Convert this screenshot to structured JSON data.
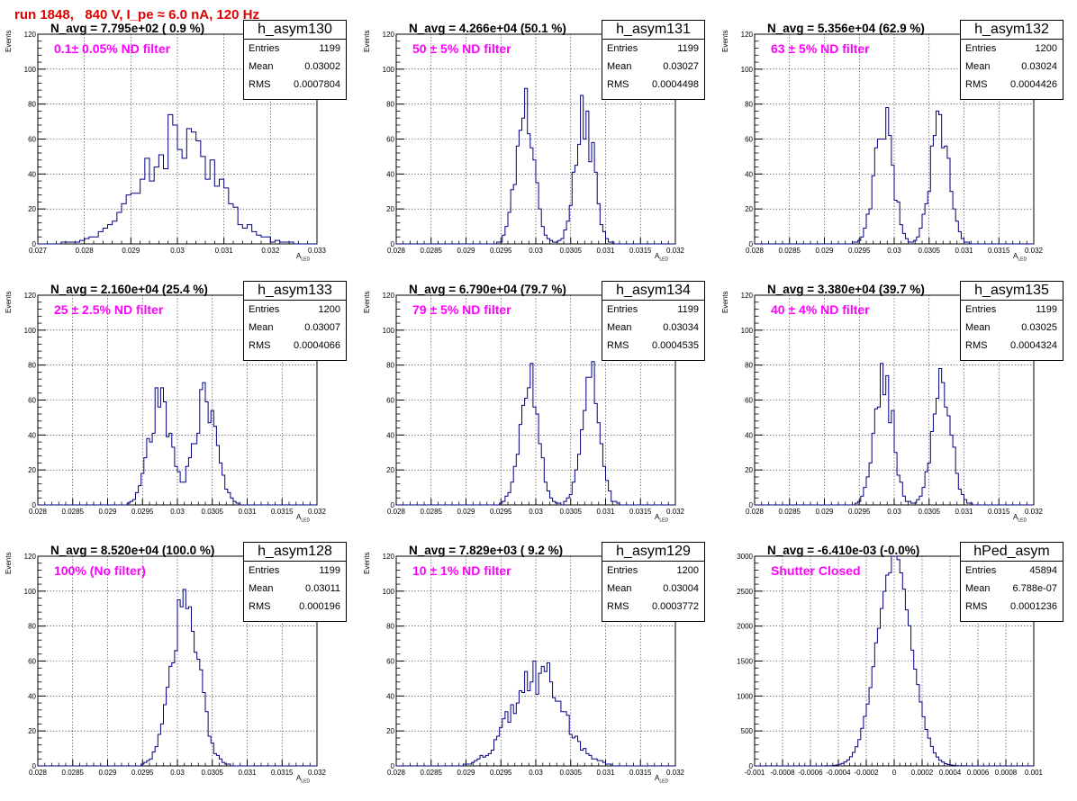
{
  "run_title": "run 1848,   840 V, I_pe ≈ 6.0 nA, 120 Hz",
  "chart_data": [
    {
      "type": "bar",
      "style": "step-histogram",
      "title": "h_asym130",
      "navg": "N_avg = 7.795e+02 ( 0.9 %)",
      "filter": "0.1± 0.05% ND filter",
      "stats": {
        "entries": "1199",
        "mean": "0.03002",
        "rms": "0.0007804"
      },
      "xlabel": "A",
      "xlabel_sub": "LED",
      "ylabel": "Events",
      "xlim": [
        0.027,
        0.033
      ],
      "ylim": [
        0,
        120
      ],
      "xticks": [
        "0.027",
        "0.028",
        "0.029",
        "0.03",
        "0.031",
        "0.032",
        "0.033"
      ],
      "yticks": [
        "0",
        "20",
        "40",
        "60",
        "80",
        "100",
        "120"
      ],
      "color": "#000080",
      "distribution": {
        "kind": "single",
        "mu": 0.03002,
        "sigma": 0.00078,
        "n": 1199,
        "bin": 0.0001,
        "noise": 0.25,
        "seed": 130
      }
    },
    {
      "type": "bar",
      "style": "step-histogram",
      "title": "h_asym131",
      "navg": "N_avg = 4.266e+04 (50.1 %)",
      "filter": "50 ± 5% ND filter",
      "stats": {
        "entries": "1199",
        "mean": "0.03027",
        "rms": "0.0004498"
      },
      "xlabel": "A",
      "xlabel_sub": "LED",
      "ylabel": "Events",
      "xlim": [
        0.028,
        0.032
      ],
      "ylim": [
        0,
        120
      ],
      "xticks": [
        "0.028",
        "0.0285",
        "0.029",
        "0.0295",
        "0.03",
        "0.0305",
        "0.031",
        "0.0315",
        "0.032"
      ],
      "yticks": [
        "0",
        "20",
        "40",
        "60",
        "80",
        "100",
        "120"
      ],
      "color": "#000080",
      "distribution": {
        "kind": "double",
        "mu1": 0.02985,
        "mu2": 0.0307,
        "sigma": 0.00013,
        "n": 1199,
        "bin": 4e-05,
        "noise": 0.2,
        "seed": 131
      }
    },
    {
      "type": "bar",
      "style": "step-histogram",
      "title": "h_asym132",
      "navg": "N_avg = 5.356e+04 (62.9 %)",
      "filter": "63 ± 5% ND filter",
      "stats": {
        "entries": "1200",
        "mean": "0.03024",
        "rms": "0.0004426"
      },
      "xlabel": "A",
      "xlabel_sub": "LED",
      "ylabel": "Events",
      "xlim": [
        0.028,
        0.032
      ],
      "ylim": [
        0,
        120
      ],
      "xticks": [
        "0.028",
        "0.0285",
        "0.029",
        "0.0295",
        "0.03",
        "0.0305",
        "0.031",
        "0.0315",
        "0.032"
      ],
      "yticks": [
        "0",
        "20",
        "40",
        "60",
        "80",
        "100",
        "120"
      ],
      "color": "#000080",
      "distribution": {
        "kind": "double",
        "mu1": 0.02985,
        "mu2": 0.03065,
        "sigma": 0.00013,
        "n": 1200,
        "bin": 4e-05,
        "noise": 0.2,
        "seed": 132
      }
    },
    {
      "type": "bar",
      "style": "step-histogram",
      "title": "h_asym133",
      "navg": "N_avg = 2.160e+04 (25.4 %)",
      "filter": "25 ± 2.5% ND filter",
      "stats": {
        "entries": "1200",
        "mean": "0.03007",
        "rms": "0.0004066"
      },
      "xlabel": "A",
      "xlabel_sub": "LED",
      "ylabel": "Events",
      "xlim": [
        0.028,
        0.032
      ],
      "ylim": [
        0,
        120
      ],
      "xticks": [
        "0.028",
        "0.0285",
        "0.029",
        "0.0295",
        "0.03",
        "0.0305",
        "0.031",
        "0.0315",
        "0.032"
      ],
      "yticks": [
        "0",
        "20",
        "40",
        "60",
        "80",
        "100",
        "120"
      ],
      "color": "#000080",
      "distribution": {
        "kind": "double",
        "mu1": 0.02975,
        "mu2": 0.0304,
        "sigma": 0.00016,
        "n": 1200,
        "bin": 4e-05,
        "noise": 0.2,
        "seed": 133
      }
    },
    {
      "type": "bar",
      "style": "step-histogram",
      "title": "h_asym134",
      "navg": "N_avg = 6.790e+04 (79.7 %)",
      "filter": "79 ± 5% ND filter",
      "stats": {
        "entries": "1199",
        "mean": "0.03034",
        "rms": "0.0004535"
      },
      "xlabel": "A",
      "xlabel_sub": "LED",
      "ylabel": "Events",
      "xlim": [
        0.028,
        0.032
      ],
      "ylim": [
        0,
        120
      ],
      "xticks": [
        "0.028",
        "0.0285",
        "0.029",
        "0.0295",
        "0.03",
        "0.0305",
        "0.031",
        "0.0315",
        "0.032"
      ],
      "yticks": [
        "0",
        "20",
        "40",
        "60",
        "80",
        "100",
        "120"
      ],
      "color": "#000080",
      "distribution": {
        "kind": "double",
        "mu1": 0.0299,
        "mu2": 0.03078,
        "sigma": 0.00013,
        "n": 1199,
        "bin": 4e-05,
        "noise": 0.15,
        "seed": 134
      }
    },
    {
      "type": "bar",
      "style": "step-histogram",
      "title": "h_asym135",
      "navg": "N_avg = 3.380e+04 (39.7 %)",
      "filter": "40 ± 4% ND filter",
      "stats": {
        "entries": "1199",
        "mean": "0.03025",
        "rms": "0.0004324"
      },
      "xlabel": "A",
      "xlabel_sub": "LED",
      "ylabel": "Events",
      "xlim": [
        0.028,
        0.032
      ],
      "ylim": [
        0,
        120
      ],
      "xticks": [
        "0.028",
        "0.0285",
        "0.029",
        "0.0295",
        "0.03",
        "0.0305",
        "0.031",
        "0.0315",
        "0.032"
      ],
      "yticks": [
        "0",
        "20",
        "40",
        "60",
        "80",
        "100",
        "120"
      ],
      "color": "#000080",
      "distribution": {
        "kind": "double",
        "mu1": 0.02985,
        "mu2": 0.03068,
        "sigma": 0.00013,
        "n": 1199,
        "bin": 4e-05,
        "noise": 0.18,
        "seed": 135
      }
    },
    {
      "type": "bar",
      "style": "step-histogram",
      "title": "h_asym128",
      "navg": "N_avg = 8.520e+04 (100.0 %)",
      "filter": "100% (No filter)",
      "stats": {
        "entries": "1199",
        "mean": "0.03011",
        "rms": "0.000196"
      },
      "xlabel": "A",
      "xlabel_sub": "LED",
      "ylabel": "Events",
      "xlim": [
        0.028,
        0.032
      ],
      "ylim": [
        0,
        120
      ],
      "xticks": [
        "0.028",
        "0.0285",
        "0.029",
        "0.0295",
        "0.03",
        "0.0305",
        "0.031",
        "0.0315",
        "0.032"
      ],
      "yticks": [
        "0",
        "20",
        "40",
        "60",
        "80",
        "100",
        "120"
      ],
      "color": "#000080",
      "distribution": {
        "kind": "single",
        "mu": 0.03011,
        "sigma": 0.000196,
        "n": 1199,
        "bin": 4e-05,
        "noise": 0.12,
        "seed": 128
      }
    },
    {
      "type": "bar",
      "style": "step-histogram",
      "title": "h_asym129",
      "navg": "N_avg = 7.829e+03 ( 9.2 %)",
      "filter": "10 ± 1% ND filter",
      "stats": {
        "entries": "1200",
        "mean": "0.03004",
        "rms": "0.0003772"
      },
      "xlabel": "A",
      "xlabel_sub": "LED",
      "ylabel": "Events",
      "xlim": [
        0.028,
        0.032
      ],
      "ylim": [
        0,
        120
      ],
      "xticks": [
        "0.028",
        "0.0285",
        "0.029",
        "0.0295",
        "0.03",
        "0.0305",
        "0.031",
        "0.0315",
        "0.032"
      ],
      "yticks": [
        "0",
        "20",
        "40",
        "60",
        "80",
        "100",
        "120"
      ],
      "color": "#000080",
      "distribution": {
        "kind": "single",
        "mu": 0.03002,
        "sigma": 0.00036,
        "n": 1200,
        "bin": 4e-05,
        "noise": 0.25,
        "seed": 129
      }
    },
    {
      "type": "bar",
      "style": "step-histogram",
      "title": "hPed_asym",
      "navg": "N_avg = -6.410e-03 (-0.0%)",
      "filter": "Shutter Closed",
      "stats": {
        "entries": "45894",
        "mean": "6.788e-07",
        "rms": "0.0001236"
      },
      "xlabel": "",
      "xlabel_sub": "",
      "ylabel": "",
      "xlim": [
        -0.001,
        0.001
      ],
      "ylim": [
        0,
        3000
      ],
      "xticks": [
        "-0.001",
        "-0.0008",
        "-0.0006",
        "-0.0004",
        "-0.0002",
        "0",
        "0.0002",
        "0.0004",
        "0.0006",
        "0.0008",
        "0.001"
      ],
      "yticks": [
        "0",
        "500",
        "1000",
        "1500",
        "2000",
        "2500",
        "3000"
      ],
      "color": "#000080",
      "distribution": {
        "kind": "single",
        "mu": 0.0,
        "sigma": 0.0001236,
        "n": 45894,
        "bin": 2e-05,
        "noise": 0.04,
        "seed": 999
      }
    }
  ],
  "labels": {
    "entries": "Entries",
    "mean": "Mean",
    "rms": "RMS"
  }
}
